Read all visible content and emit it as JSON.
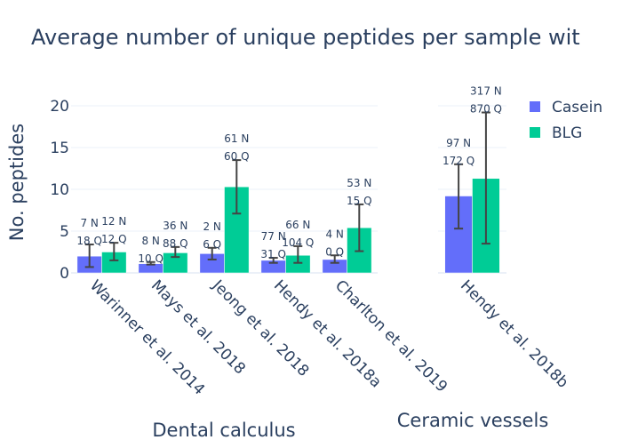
{
  "chart_data": {
    "type": "bar",
    "title": "Average number of unique peptides per sample wit",
    "ylabel": "No. peptides",
    "ylim": [
      0,
      22
    ],
    "yticks": [
      0,
      5,
      10,
      15,
      20
    ],
    "grid": true,
    "legend_position": "top-right",
    "colors": {
      "Casein": "#636efa",
      "BLG": "#00cc96",
      "error_bar": "#444444",
      "grid": "#ebf0f8",
      "text": "#2a3f5f"
    },
    "panels": [
      {
        "xlabel": "Dental calculus",
        "categories": [
          "Warinner et al. 2014",
          "Mays et al. 2018",
          "Jeong et al. 2018",
          "Hendy et al. 2018a",
          "Charlton et al. 2019"
        ]
      },
      {
        "xlabel": "Ceramic vessels",
        "categories": [
          "Hendy et al. 2018b"
        ]
      }
    ],
    "series": [
      {
        "name": "Casein",
        "values": [
          2.0,
          1.1,
          2.3,
          1.5,
          1.6,
          9.2
        ],
        "error_low": [
          0.7,
          1.0,
          1.6,
          1.2,
          1.2,
          5.3
        ],
        "error_high": [
          3.4,
          1.3,
          3.0,
          1.8,
          2.1,
          13.0
        ],
        "labels_line1": [
          "7 N",
          "8 N",
          "2 N",
          "77 N",
          "4 N",
          "97 N"
        ],
        "labels_line2": [
          "18 Q",
          "10 Q",
          "6 Q",
          "31 Q",
          "0 Q",
          "172 Q"
        ]
      },
      {
        "name": "BLG",
        "values": [
          2.5,
          2.4,
          10.3,
          2.1,
          5.4,
          11.3
        ],
        "error_low": [
          1.5,
          1.9,
          7.1,
          1.2,
          2.6,
          3.5
        ],
        "error_high": [
          3.6,
          3.1,
          13.5,
          3.2,
          8.2,
          19.2
        ],
        "labels_line1": [
          "12 N",
          "36 N",
          "61 N",
          "66 N",
          "53 N",
          "317 N"
        ],
        "labels_line2": [
          "12 Q",
          "88 Q",
          "60 Q",
          "104 Q",
          "15 Q",
          "870 Q"
        ]
      }
    ]
  }
}
